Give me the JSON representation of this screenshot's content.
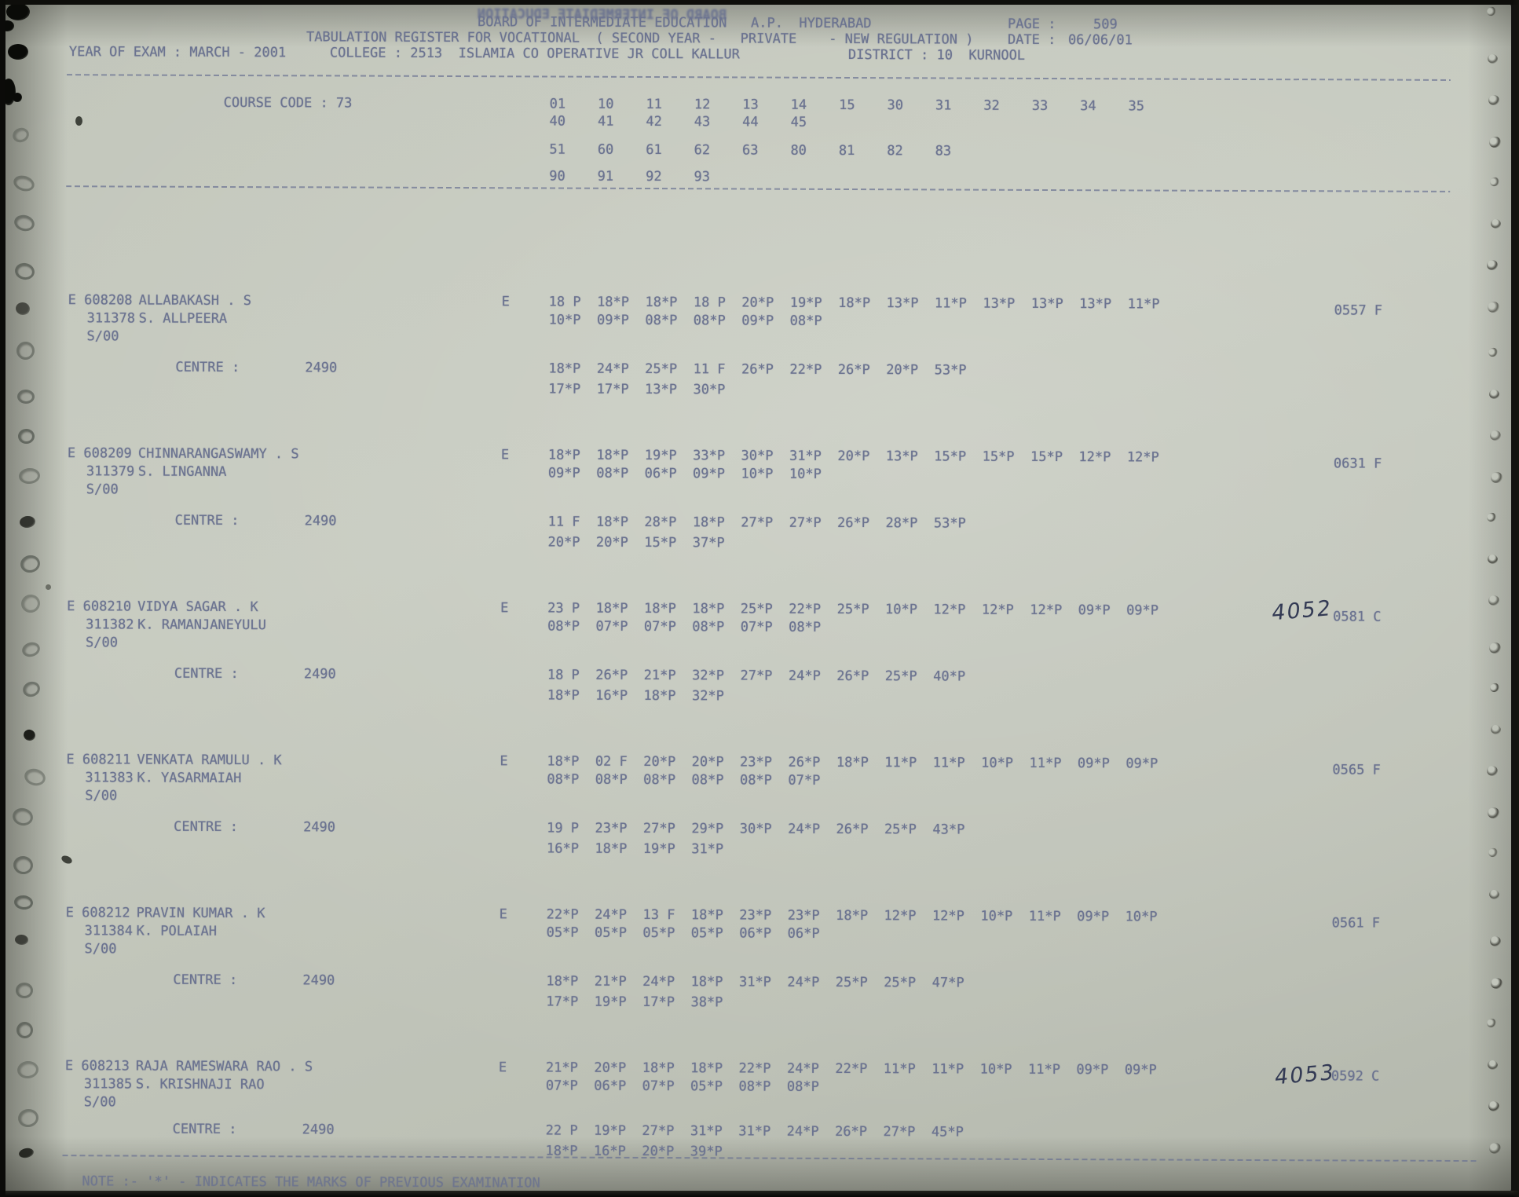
{
  "header": {
    "line1": "BOARD OF INTERMEDIATE EDUCATION   A.P.  HYDERABAD",
    "ghost_text": "BOARD OF INTERMEDIATE EDUCATION",
    "page_label": "PAGE :",
    "page_value": "509",
    "line2": "TABULATION REGISTER FOR VOCATIONAL  ( SECOND YEAR -   PRIVATE    - NEW REGULATION )",
    "date_label": "DATE :",
    "date_value": "06/06/01",
    "year_of_exam": "YEAR OF EXAM : MARCH - 2001",
    "college": "COLLEGE : 2513  ISLAMIA CO OPERATIVE JR COLL KALLUR",
    "district": "DISTRICT : 10  KURNOOL"
  },
  "course": {
    "label": "COURSE CODE : 73",
    "codes_row1": "01    10    11    12    13    14    15    30    31    32    33    34    35",
    "codes_row1b": "40    41    42    43    44    45",
    "codes_row2": "51    60    61    62    63    80    81    82    83",
    "codes_row2b": "90    91    92    93"
  },
  "records": [
    {
      "serial": "E 608208",
      "reg_no": "311378",
      "appearance": "S/00",
      "name": "ALLABAKASH . S",
      "father_name": "S. ALLPEERA",
      "medium": "E",
      "marks_line1": "18 P  18*P  18*P  18 P  20*P  19*P  18*P  13*P  11*P  13*P  13*P  13*P  11*P",
      "marks_line2": "10*P  09*P  08*P  08*P  09*P  08*P",
      "handwritten": "",
      "result": "0557 F",
      "centre_label": "CENTRE :",
      "centre_no": "2490",
      "centre_marks_line1": "18*P  24*P  25*P  11 F  26*P  22*P  26*P  20*P  53*P",
      "centre_marks_line2": "17*P  17*P  13*P  30*P"
    },
    {
      "serial": "E 608209",
      "reg_no": "311379",
      "appearance": "S/00",
      "name": "CHINNARANGASWAMY . S",
      "father_name": "S. LINGANNA",
      "medium": "E",
      "marks_line1": "18*P  18*P  19*P  33*P  30*P  31*P  20*P  13*P  15*P  15*P  15*P  12*P  12*P",
      "marks_line2": "09*P  08*P  06*P  09*P  10*P  10*P",
      "handwritten": "",
      "result": "0631 F",
      "centre_label": "CENTRE :",
      "centre_no": "2490",
      "centre_marks_line1": "11 F  18*P  28*P  18*P  27*P  27*P  26*P  28*P  53*P",
      "centre_marks_line2": "20*P  20*P  15*P  37*P"
    },
    {
      "serial": "E 608210",
      "reg_no": "311382",
      "appearance": "S/00",
      "name": "VIDYA SAGAR . K",
      "father_name": "K. RAMANJANEYULU",
      "medium": "E",
      "marks_line1": "23 P  18*P  18*P  18*P  25*P  22*P  25*P  10*P  12*P  12*P  12*P  09*P  09*P",
      "marks_line2": "08*P  07*P  07*P  08*P  07*P  08*P",
      "handwritten": "4052",
      "result": "0581 C",
      "centre_label": "CENTRE :",
      "centre_no": "2490",
      "centre_marks_line1": "18 P  26*P  21*P  32*P  27*P  24*P  26*P  25*P  40*P",
      "centre_marks_line2": "18*P  16*P  18*P  32*P"
    },
    {
      "serial": "E 608211",
      "reg_no": "311383",
      "appearance": "S/00",
      "name": "VENKATA RAMULU . K",
      "father_name": "K. YASARMAIAH",
      "medium": "E",
      "marks_line1": "18*P  02 F  20*P  20*P  23*P  26*P  18*P  11*P  11*P  10*P  11*P  09*P  09*P",
      "marks_line2": "08*P  08*P  08*P  08*P  08*P  07*P",
      "handwritten": "",
      "result": "0565 F",
      "centre_label": "CENTRE :",
      "centre_no": "2490",
      "centre_marks_line1": "19 P  23*P  27*P  29*P  30*P  24*P  26*P  25*P  43*P",
      "centre_marks_line2": "16*P  18*P  19*P  31*P"
    },
    {
      "serial": "E 608212",
      "reg_no": "311384",
      "appearance": "S/00",
      "name": "PRAVIN KUMAR . K",
      "father_name": "K. POLAIAH",
      "medium": "E",
      "marks_line1": "22*P  24*P  13 F  18*P  23*P  23*P  18*P  12*P  12*P  10*P  11*P  09*P  10*P",
      "marks_line2": "05*P  05*P  05*P  05*P  06*P  06*P",
      "handwritten": "",
      "result": "0561 F",
      "centre_label": "CENTRE :",
      "centre_no": "2490",
      "centre_marks_line1": "18*P  21*P  24*P  18*P  31*P  24*P  25*P  25*P  47*P",
      "centre_marks_line2": "17*P  19*P  17*P  38*P"
    },
    {
      "serial": "E 608213",
      "reg_no": "311385",
      "appearance": "S/00",
      "name": "RAJA RAMESWARA RAO . S",
      "father_name": "S. KRISHNAJI RAO",
      "medium": "E",
      "marks_line1": "21*P  20*P  18*P  18*P  22*P  24*P  22*P  11*P  11*P  10*P  11*P  09*P  09*P",
      "marks_line2": "07*P  06*P  07*P  05*P  08*P  08*P",
      "handwritten": "4053",
      "result": "0592 C",
      "centre_label": "CENTRE :",
      "centre_no": "2490",
      "centre_marks_line1": "22 P  19*P  27*P  31*P  31*P  24*P  26*P  27*P  45*P",
      "centre_marks_line2": "18*P  16*P  20*P  39*P"
    }
  ],
  "note": "NOTE :- '*' - INDICATES THE MARKS OF PREVIOUS EXAMINATION"
}
